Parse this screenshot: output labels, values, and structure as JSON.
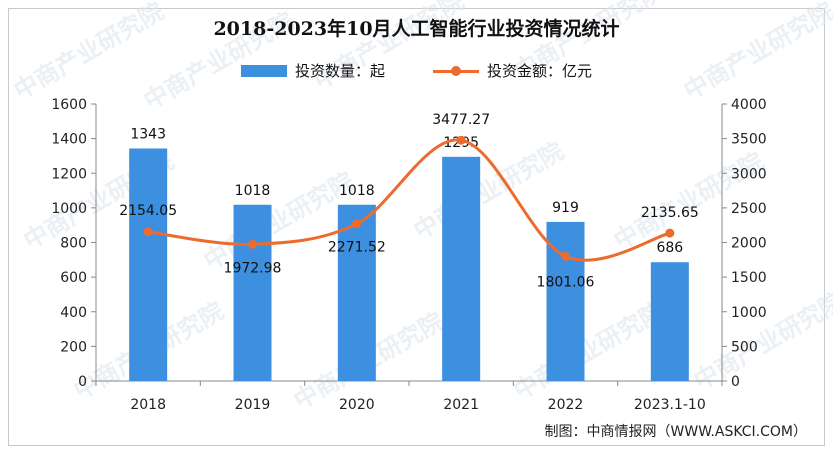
{
  "chart_data": {
    "type": "bar+line",
    "title": "2018-2023年10月人工智能行业投资情况统计",
    "categories": [
      "2018",
      "2019",
      "2020",
      "2021",
      "2022",
      "2023.1-10"
    ],
    "series": [
      {
        "name": "投资数量：起",
        "type": "bar",
        "axis": "left",
        "values": [
          1343,
          1018,
          1018,
          1295,
          919,
          686
        ],
        "labels": [
          "1343",
          "1018",
          "1018",
          "1295",
          "919",
          "686"
        ],
        "color": "#3d8fe0"
      },
      {
        "name": "投资金额：亿元",
        "type": "line",
        "axis": "right",
        "values": [
          2154.05,
          1972.98,
          2271.52,
          3477.27,
          1801.06,
          2135.65
        ],
        "labels": [
          "2154.05",
          "1972.98",
          "2271.52",
          "3477.27",
          "1801.06",
          "2135.65"
        ],
        "color": "#ec6b2d"
      }
    ],
    "ylim_left": [
      0,
      1600
    ],
    "yticks_left": [
      "0",
      "200",
      "400",
      "600",
      "800",
      "1000",
      "1200",
      "1400",
      "1600"
    ],
    "ylim_right": [
      0,
      4000
    ],
    "yticks_right": [
      "0",
      "500",
      "1000",
      "1500",
      "2000",
      "2500",
      "3000",
      "3500",
      "4000"
    ],
    "grid": false,
    "legend_position": "top-center",
    "source": "制图：中商情报网（WWW.ASKCI.COM）"
  },
  "watermark_text": "中商产业研究院"
}
